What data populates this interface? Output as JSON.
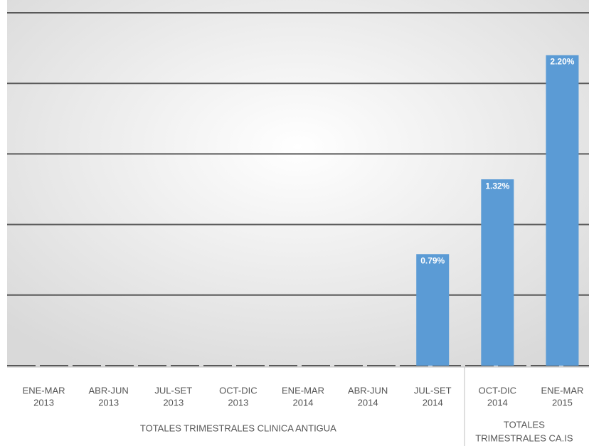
{
  "chart_data": {
    "type": "bar",
    "categories": [
      [
        "ENE-MAR",
        "2013"
      ],
      [
        "ABR-JUN",
        "2013"
      ],
      [
        "JUL-SET",
        "2013"
      ],
      [
        "OCT-DIC",
        "2013"
      ],
      [
        "ENE-MAR",
        "2014"
      ],
      [
        "ABR-JUN",
        "2014"
      ],
      [
        "JUL-SET",
        "2014"
      ],
      [
        "OCT-DIC",
        "2014"
      ],
      [
        "ENE-MAR",
        "2015"
      ]
    ],
    "values": [
      0,
      0,
      0,
      0,
      0,
      0,
      0.79,
      1.32,
      2.2
    ],
    "value_labels": [
      null,
      null,
      null,
      null,
      null,
      null,
      "0.79%",
      "1.32%",
      "2.20%"
    ],
    "color": "#5b9bd5",
    "groups": [
      {
        "lines": [
          "TOTALES TRIMESTRALES CLINICA ANTIGUA"
        ],
        "count": 7
      },
      {
        "lines": [
          "TOTALES",
          "TRIMESTRALES CA.IS"
        ],
        "count": 2
      }
    ],
    "ylim": [
      0,
      2.5
    ],
    "yticks": [
      0,
      0.5,
      1,
      1.5,
      2,
      2.5
    ],
    "grid": true
  }
}
